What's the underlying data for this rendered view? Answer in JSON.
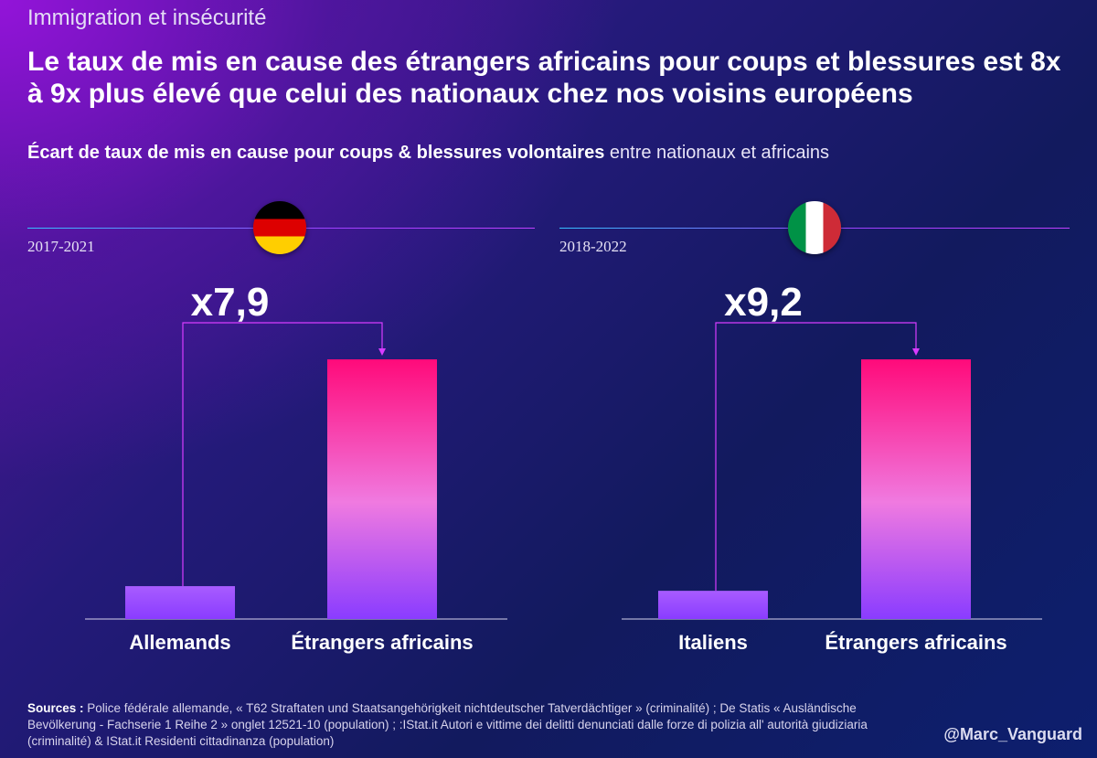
{
  "header": {
    "kicker": "Immigration et insécurité",
    "headline": "Le taux de mis en cause des étrangers africains pour coups et blessures est 8x à 9x plus élevé que celui des nationaux chez nos voisins européens",
    "subtitle_bold": "Écart de taux de mis en cause pour coups & blessures volontaires",
    "subtitle_rest": " entre nationaux et africains"
  },
  "colors": {
    "bar_top": "#ff0a7a",
    "bar_bottom": "#8a3cff",
    "low_bar": "#9b4dff",
    "connector": "#d83cff"
  },
  "chart_data": [
    {
      "type": "bar",
      "country": "Allemagne",
      "flag_icon": "germany-flag-icon",
      "period": "2017-2021",
      "multiplier_label": "x7,9",
      "categories": [
        "Allemands",
        "Étrangers africains"
      ],
      "values": [
        1,
        7.9
      ],
      "ylim": [
        0,
        7.9
      ]
    },
    {
      "type": "bar",
      "country": "Italie",
      "flag_icon": "italy-flag-icon",
      "period": "2018-2022",
      "multiplier_label": "x9,2",
      "categories": [
        "Italiens",
        "Étrangers africains"
      ],
      "values": [
        1,
        9.2
      ],
      "ylim": [
        0,
        9.2
      ]
    }
  ],
  "footer": {
    "sources_label": "Sources :",
    "sources_text": " Police fédérale allemande, « T62 Straftaten und Staatsangehörigkeit nichtdeutscher Tatverdächtiger » (criminalité) ; De Statis « Ausländische Bevölkerung - Fachserie 1 Reihe 2 » onglet 12521-10 (population) ; :IStat.it Autori e vittime dei delitti denunciati dalle forze di polizia all' autorità giudiziaria (criminalité) & IStat.it Residenti cittadinanza (population)",
    "handle": "@Marc_Vanguard"
  }
}
